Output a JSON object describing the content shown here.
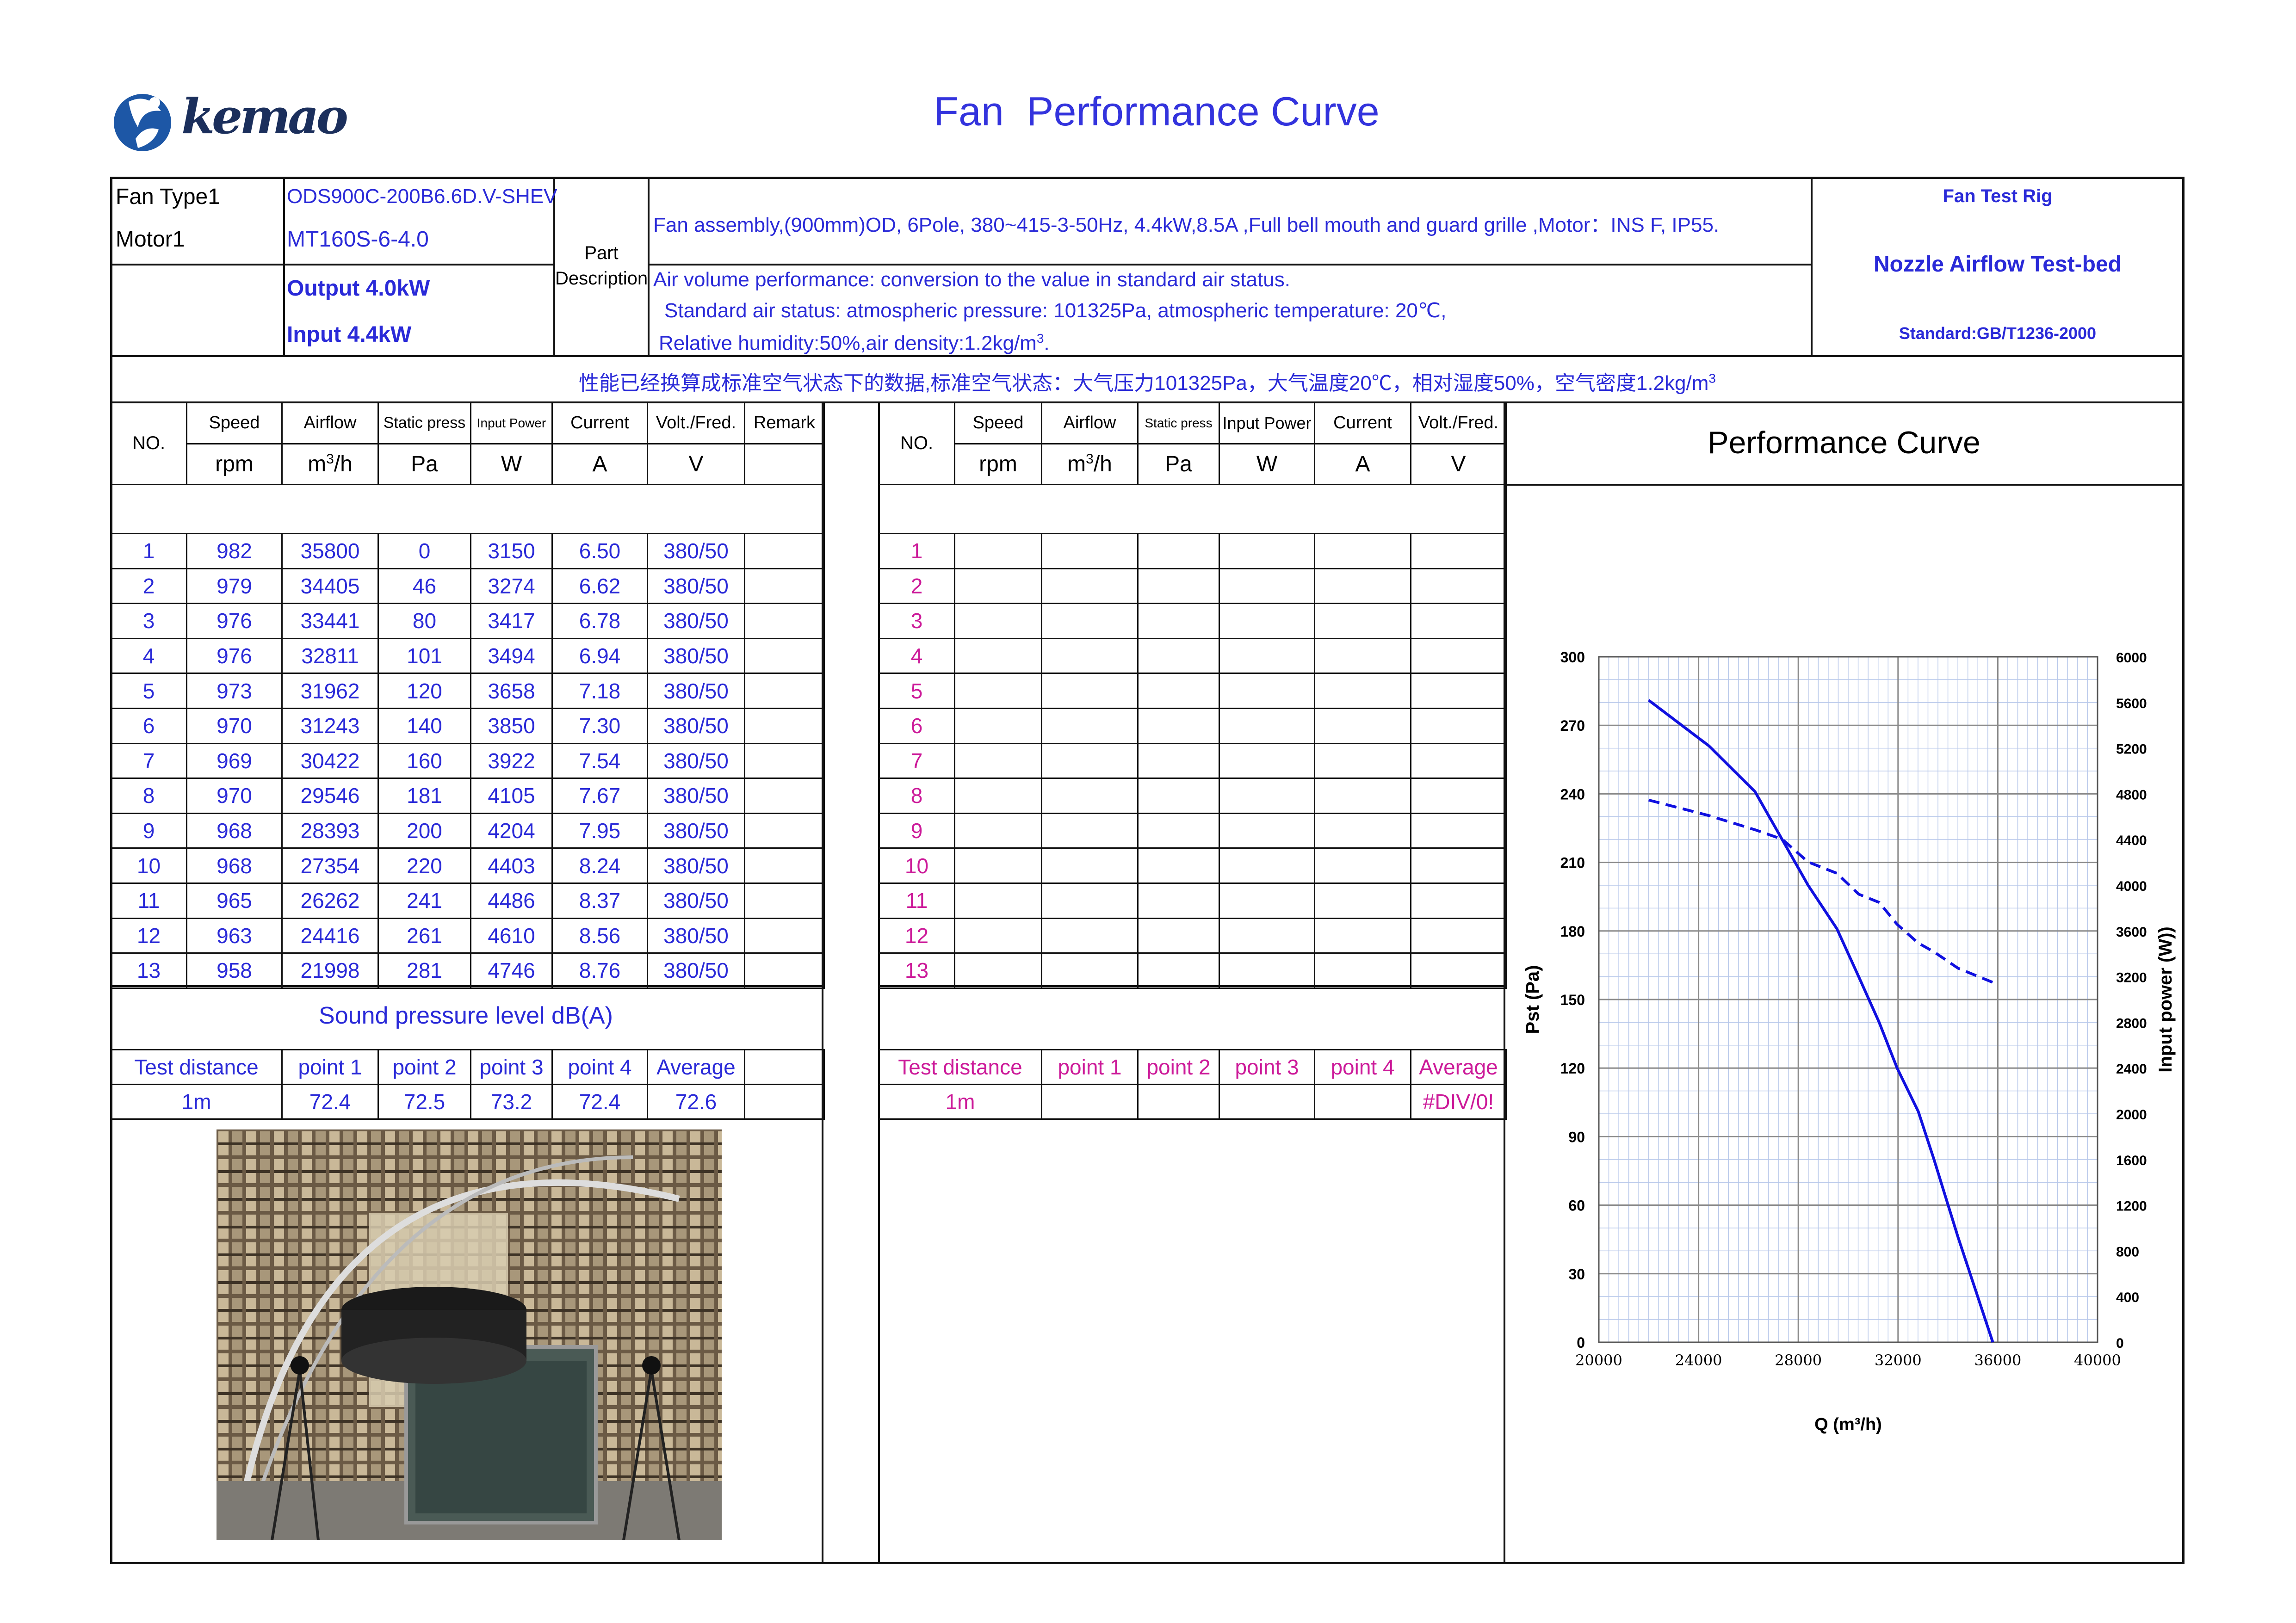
{
  "brand": {
    "name": "kemao"
  },
  "title": "Fan  Performance Curve",
  "info": {
    "fan_type_label": "Fan Type1",
    "fan_type_value": "ODS900C-200B6.6D.V-SHEV",
    "motor_label": "Motor1",
    "motor_value": "MT160S-6-4.0",
    "output": "Output 4.0kW",
    "input": "Input 4.4kW",
    "part_label_1": "Part",
    "part_label_2": "Description",
    "part_desc": "Fan assembly,(900mm)OD, 6Pole, 380~415-3-50Hz, 4.4kW,8.5A ,Full bell mouth and guard grille ,Motor：INS F, IP55.",
    "air_1": "Air volume performance: conversion to the value in standard air status.",
    "air_2": "Standard air status: atmospheric pressure: 101325Pa, atmospheric temperature: 20℃,",
    "air_3": "Relative humidity:50%,air density:1.2kg/m",
    "air_3_sup": "3",
    "air_3_end": ".",
    "rig_title": "Fan Test Rig",
    "rig_name": "Nozzle Airflow Test-bed",
    "rig_standard": "Standard:GB/T1236-2000",
    "cn_note": "性能已经换算成标准空气状态下的数据,标准空气状态：大气压力101325Pa，大气温度20℃，相对湿度50%，空气密度1.2kg/m",
    "cn_note_sup": "3"
  },
  "left_table": {
    "headers": [
      "NO.",
      "Speed",
      "Airflow",
      "Static press",
      "Input Power",
      "Current",
      "Volt./Fred.",
      "Remark"
    ],
    "units": [
      "rpm",
      "m",
      "Pa",
      "W",
      "A",
      "V"
    ],
    "unit_sup": "3",
    "unit_suffix": "/h",
    "rows": [
      [
        "1",
        "982",
        "35800",
        "0",
        "3150",
        "6.50",
        "380/50"
      ],
      [
        "2",
        "979",
        "34405",
        "46",
        "3274",
        "6.62",
        "380/50"
      ],
      [
        "3",
        "976",
        "33441",
        "80",
        "3417",
        "6.78",
        "380/50"
      ],
      [
        "4",
        "976",
        "32811",
        "101",
        "3494",
        "6.94",
        "380/50"
      ],
      [
        "5",
        "973",
        "31962",
        "120",
        "3658",
        "7.18",
        "380/50"
      ],
      [
        "6",
        "970",
        "31243",
        "140",
        "3850",
        "7.30",
        "380/50"
      ],
      [
        "7",
        "969",
        "30422",
        "160",
        "3922",
        "7.54",
        "380/50"
      ],
      [
        "8",
        "970",
        "29546",
        "181",
        "4105",
        "7.67",
        "380/50"
      ],
      [
        "9",
        "968",
        "28393",
        "200",
        "4204",
        "7.95",
        "380/50"
      ],
      [
        "10",
        "968",
        "27354",
        "220",
        "4403",
        "8.24",
        "380/50"
      ],
      [
        "11",
        "965",
        "26262",
        "241",
        "4486",
        "8.37",
        "380/50"
      ],
      [
        "12",
        "963",
        "24416",
        "261",
        "4610",
        "8.56",
        "380/50"
      ],
      [
        "13",
        "958",
        "21998",
        "281",
        "4746",
        "8.76",
        "380/50"
      ]
    ]
  },
  "right_table": {
    "headers": [
      "NO.",
      "Speed",
      "Airflow",
      "Static press",
      "Input Power",
      "Current",
      "Volt./Fred."
    ],
    "numbers": [
      "1",
      "2",
      "3",
      "4",
      "5",
      "6",
      "7",
      "8",
      "9",
      "10",
      "11",
      "12",
      "13"
    ]
  },
  "sound": {
    "title": "Sound pressure level dB(A)",
    "headers": [
      "Test distance",
      "point 1",
      "point 2",
      "point 3",
      "point 4",
      "Average"
    ],
    "left_values": [
      "1m",
      "72.4",
      "72.5",
      "73.2",
      "72.4",
      "72.6"
    ],
    "right_values": [
      "1m",
      "",
      "",
      "",
      "",
      "#DIV/0!"
    ]
  },
  "perf_title": "Performance Curve",
  "chart_data": {
    "type": "line",
    "title": "",
    "xlabel": "Q (m³/h)",
    "ylabel": "Pst (Pa)",
    "y2label": "Input power  (W))",
    "xlim": [
      20000,
      40000
    ],
    "ylim": [
      0,
      300
    ],
    "y2lim": [
      0,
      6000
    ],
    "x_ticks": [
      "20000",
      "24000",
      "28000",
      "32000",
      "36000",
      "40000"
    ],
    "y_ticks": [
      "0",
      "30",
      "60",
      "90",
      "120",
      "150",
      "180",
      "210",
      "240",
      "270",
      "300"
    ],
    "y2_ticks": [
      "0",
      "400",
      "800",
      "1200",
      "1600",
      "2000",
      "2400",
      "2800",
      "3200",
      "3600",
      "4000",
      "4400",
      "4800",
      "5200",
      "5600",
      "6000"
    ],
    "grid": true,
    "series": [
      {
        "axis": "left",
        "style": "solid",
        "color": "#1010e0",
        "x": [
          21998,
          24416,
          26262,
          27354,
          28393,
          29546,
          30422,
          31243,
          31962,
          32811,
          33441,
          34405,
          35800
        ],
        "y": [
          281,
          261,
          241,
          220,
          200,
          181,
          160,
          140,
          120,
          101,
          80,
          46,
          0
        ]
      },
      {
        "axis": "right",
        "style": "dashed",
        "color": "#1010e0",
        "x": [
          21998,
          24416,
          26262,
          27354,
          28393,
          29546,
          30422,
          31243,
          31962,
          32811,
          33441,
          34405,
          35800
        ],
        "y": [
          4746,
          4610,
          4486,
          4403,
          4204,
          4105,
          3922,
          3850,
          3658,
          3494,
          3417,
          3274,
          3150
        ]
      }
    ]
  }
}
